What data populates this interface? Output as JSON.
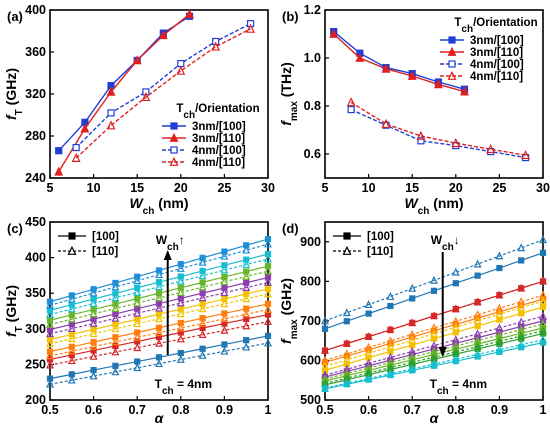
{
  "chart_data": [
    {
      "panel": "(a)",
      "type": "line",
      "xlabel_main": "W",
      "xlabel_sub": "ch",
      "xlabel_unit": " (nm)",
      "ylabel_main": "f",
      "ylabel_sub": "T",
      "ylabel_unit": " (GHz)",
      "xlim": [
        5,
        30
      ],
      "ylim": [
        240,
        400
      ],
      "xticks": [
        "5",
        "10",
        "15",
        "20",
        "25",
        "30"
      ],
      "yticks": [
        "240",
        "280",
        "320",
        "360",
        "400"
      ],
      "legend_title_main": "T",
      "legend_title_sub": "ch",
      "legend_title_rest": "/Orientation",
      "legend_position": "lower-right",
      "series": [
        {
          "name": "3nm/[100]",
          "color": "#1f3fd6",
          "marker": "square",
          "filled": true,
          "dashed": false,
          "x": [
            6,
            9,
            12,
            15,
            18,
            21
          ],
          "y": [
            266,
            293,
            328,
            352,
            378,
            394
          ]
        },
        {
          "name": "3nm/[110]",
          "color": "#e02020",
          "marker": "triangle",
          "filled": true,
          "dashed": false,
          "x": [
            6,
            9,
            12,
            15,
            18,
            21
          ],
          "y": [
            246,
            287,
            322,
            352,
            376,
            396
          ]
        },
        {
          "name": "4nm/[100]",
          "color": "#1f3fd6",
          "marker": "square",
          "filled": false,
          "dashed": true,
          "x": [
            8,
            12,
            16,
            20,
            24,
            28
          ],
          "y": [
            269,
            302,
            322,
            349,
            370,
            387
          ]
        },
        {
          "name": "4nm/[110]",
          "color": "#e02020",
          "marker": "triangle",
          "filled": false,
          "dashed": true,
          "x": [
            8,
            12,
            16,
            20,
            24,
            28
          ],
          "y": [
            259,
            290,
            317,
            342,
            365,
            382
          ]
        }
      ]
    },
    {
      "panel": "(b)",
      "type": "line",
      "xlabel_main": "W",
      "xlabel_sub": "ch",
      "xlabel_unit": " (nm)",
      "ylabel_main": "f",
      "ylabel_sub": "max",
      "ylabel_unit": " (THz)",
      "xlim": [
        5,
        30
      ],
      "ylim": [
        0.5,
        1.2
      ],
      "xticks": [
        "5",
        "10",
        "15",
        "20",
        "25",
        "30"
      ],
      "yticks": [
        "0.6",
        "0.8",
        "1.0",
        "1.2"
      ],
      "legend_title_main": "T",
      "legend_title_sub": "ch",
      "legend_title_rest": "/Orientation",
      "legend_position": "top-right",
      "series": [
        {
          "name": "3nm/[100]",
          "color": "#1f3fd6",
          "marker": "square",
          "filled": true,
          "dashed": false,
          "x": [
            6,
            9,
            12,
            15,
            18,
            21
          ],
          "y": [
            1.11,
            1.02,
            0.96,
            0.935,
            0.9,
            0.87
          ]
        },
        {
          "name": "3nm/[110]",
          "color": "#e02020",
          "marker": "triangle",
          "filled": true,
          "dashed": false,
          "x": [
            6,
            9,
            12,
            15,
            18,
            21
          ],
          "y": [
            1.1,
            1.0,
            0.955,
            0.925,
            0.89,
            0.86
          ]
        },
        {
          "name": "4nm/[100]",
          "color": "#1f3fd6",
          "marker": "square",
          "filled": false,
          "dashed": true,
          "x": [
            8,
            12,
            16,
            20,
            24,
            28
          ],
          "y": [
            0.785,
            0.72,
            0.655,
            0.635,
            0.61,
            0.585
          ]
        },
        {
          "name": "4nm/[110]",
          "color": "#e02020",
          "marker": "triangle",
          "filled": false,
          "dashed": true,
          "x": [
            8,
            12,
            16,
            20,
            24,
            28
          ],
          "y": [
            0.815,
            0.725,
            0.675,
            0.645,
            0.62,
            0.595
          ]
        }
      ]
    },
    {
      "panel": "(c)",
      "type": "line",
      "xlabel_main": "α",
      "ylabel_main": "f",
      "ylabel_sub": "T",
      "ylabel_unit": " (GHz)",
      "xlim": [
        0.5,
        1.0
      ],
      "ylim": [
        200,
        450
      ],
      "xticks": [
        "0.5",
        "0.6",
        "0.7",
        "0.8",
        "0.9",
        "1"
      ],
      "yticks": [
        "200",
        "250",
        "300",
        "350",
        "400",
        "450"
      ],
      "legend_entries": [
        "[100]",
        "[110]"
      ],
      "legend_position": "top-left",
      "arrow_label_main": "W",
      "arrow_label_sub": "ch",
      "arrow_label_glyph": "↑",
      "arrow_direction": "up",
      "note_main": "T",
      "note_sub": "ch",
      "note_rest": " = 4nm",
      "x": [
        0.5,
        0.55,
        0.6,
        0.65,
        0.7,
        0.75,
        0.8,
        0.85,
        0.9,
        0.95,
        1.0
      ],
      "groups": [
        {
          "color": "#1f77b4",
          "solid_start": 230,
          "solid_end": 290,
          "dashed_start": 222,
          "dashed_end": 280
        },
        {
          "color": "#d62728",
          "solid_start": 257,
          "solid_end": 320,
          "dashed_start": 249,
          "dashed_end": 310
        },
        {
          "color": "#ff7f0e",
          "solid_start": 268,
          "solid_end": 335,
          "dashed_start": 262,
          "dashed_end": 327
        },
        {
          "color": "#f2c200",
          "solid_start": 285,
          "solid_end": 356,
          "dashed_start": 279,
          "dashed_end": 349
        },
        {
          "color": "#8c3fae",
          "solid_start": 299,
          "solid_end": 372,
          "dashed_start": 293,
          "dashed_end": 365
        },
        {
          "color": "#6bb52a",
          "solid_start": 312,
          "solid_end": 388,
          "dashed_start": 306,
          "dashed_end": 381
        },
        {
          "color": "#17becf",
          "solid_start": 326,
          "solid_end": 405,
          "dashed_start": 320,
          "dashed_end": 398
        },
        {
          "color": "#1f8fd6",
          "solid_start": 338,
          "solid_end": 426,
          "dashed_start": 333,
          "dashed_end": 419
        }
      ]
    },
    {
      "panel": "(d)",
      "type": "line",
      "xlabel_main": "α",
      "ylabel_main": "f",
      "ylabel_sub": "max",
      "ylabel_unit": " (GHz)",
      "xlim": [
        0.5,
        1.0
      ],
      "ylim": [
        500,
        950
      ],
      "xticks": [
        "0.5",
        "0.6",
        "0.7",
        "0.8",
        "0.9",
        "1"
      ],
      "yticks": [
        "500",
        "600",
        "700",
        "800",
        "900"
      ],
      "legend_entries": [
        "[100]",
        "[110]"
      ],
      "legend_position": "top-left",
      "arrow_label_main": "W",
      "arrow_label_sub": "ch",
      "arrow_label_glyph": "↓",
      "arrow_direction": "down",
      "note_main": "T",
      "note_sub": "ch",
      "note_rest": " = 4nm",
      "x": [
        0.5,
        0.55,
        0.6,
        0.65,
        0.7,
        0.75,
        0.8,
        0.85,
        0.9,
        0.95,
        1.0
      ],
      "groups": [
        {
          "color": "#1f77b4",
          "solid_start": 680,
          "solid_end": 872,
          "dashed_start": 700,
          "dashed_end": 905
        },
        {
          "color": "#d62728",
          "solid_start": 625,
          "solid_end": 800,
          "dashed_start": 625,
          "dashed_end": 800
        },
        {
          "color": "#ff7f0e",
          "solid_start": 595,
          "solid_end": 755,
          "dashed_start": 600,
          "dashed_end": 765
        },
        {
          "color": "#f2c200",
          "solid_start": 575,
          "solid_end": 735,
          "dashed_start": 585,
          "dashed_end": 750
        },
        {
          "color": "#8c3fae",
          "solid_start": 558,
          "solid_end": 700,
          "dashed_start": 563,
          "dashed_end": 712
        },
        {
          "color": "#6bb52a",
          "solid_start": 548,
          "solid_end": 682,
          "dashed_start": 553,
          "dashed_end": 692
        },
        {
          "color": "#2ca02c",
          "solid_start": 538,
          "solid_end": 668,
          "dashed_start": 542,
          "dashed_end": 675
        },
        {
          "color": "#17becf",
          "solid_start": 528,
          "solid_end": 645,
          "dashed_start": 530,
          "dashed_end": 652
        }
      ]
    }
  ]
}
